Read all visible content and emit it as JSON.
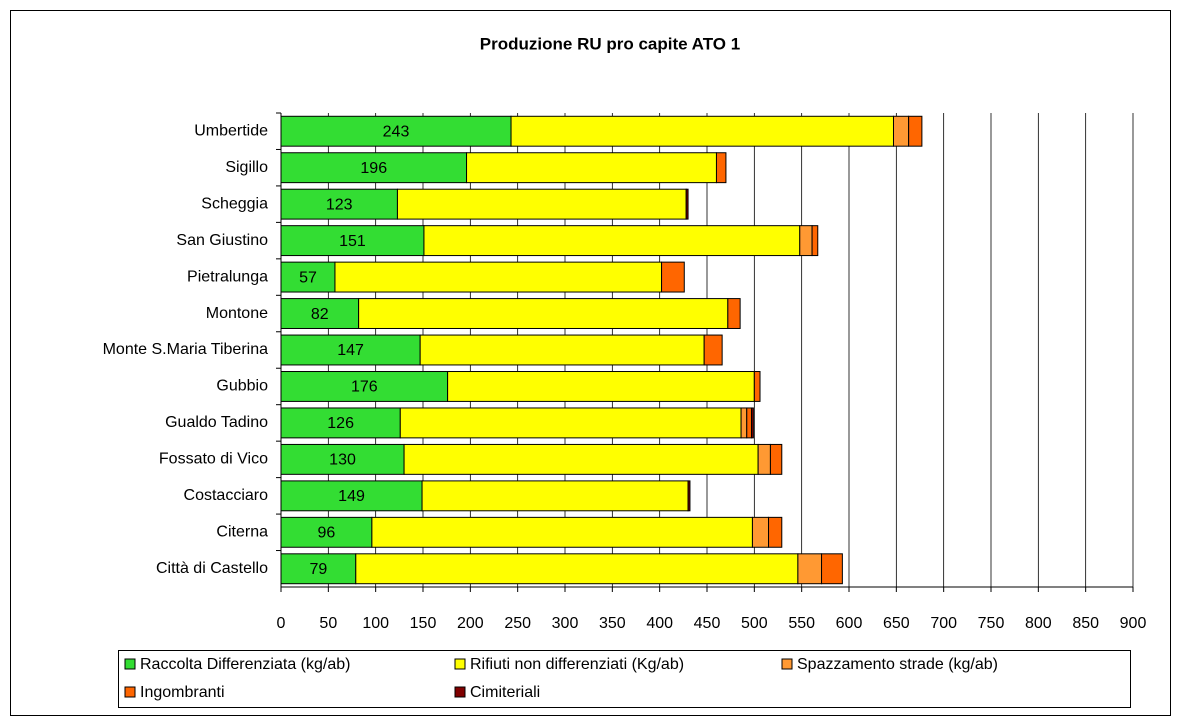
{
  "chart_data": {
    "type": "bar",
    "orientation": "horizontal",
    "stacked": true,
    "title": "Produzione RU pro capite ATO 1",
    "categories": [
      "Umbertide",
      "Sigillo",
      "Scheggia",
      "San Giustino",
      "Pietralunga",
      "Montone",
      "Monte S.Maria Tiberina",
      "Gubbio",
      "Gualdo Tadino",
      "Fossato di Vico",
      "Costacciaro",
      "Citerna",
      "Città di Castello"
    ],
    "series": [
      {
        "name": "Raccolta Differenziata (kg/ab)",
        "color": "#33dd33",
        "values": [
          243,
          196,
          123,
          151,
          57,
          82,
          147,
          176,
          126,
          130,
          149,
          96,
          79
        ],
        "data_labels": true
      },
      {
        "name": "Rifiuti non differenziati (Kg/ab)",
        "color": "#ffff00",
        "values": [
          404,
          264,
          305,
          397,
          345,
          390,
          300,
          324,
          360,
          374,
          281,
          402,
          467
        ]
      },
      {
        "name": "Spazzamento strade (kg/ab)",
        "color": "#ff9933",
        "values": [
          16,
          0,
          0,
          13,
          0,
          0,
          0,
          0,
          6,
          13,
          0,
          17,
          25
        ]
      },
      {
        "name": "Ingombranti",
        "color": "#ff6600",
        "values": [
          14,
          10,
          0,
          6,
          24,
          13,
          19,
          6,
          5,
          12,
          0,
          14,
          22
        ]
      },
      {
        "name": "Cimiteriali",
        "color": "#800000",
        "values": [
          0,
          0,
          2,
          0,
          0,
          0,
          0,
          0,
          2,
          0,
          2,
          0,
          0
        ]
      }
    ],
    "xlim": [
      0,
      900
    ],
    "xticks": [
      0,
      50,
      100,
      150,
      200,
      250,
      300,
      350,
      400,
      450,
      500,
      550,
      600,
      650,
      700,
      750,
      800,
      850,
      900
    ],
    "grid": true,
    "legend": "bottom"
  }
}
